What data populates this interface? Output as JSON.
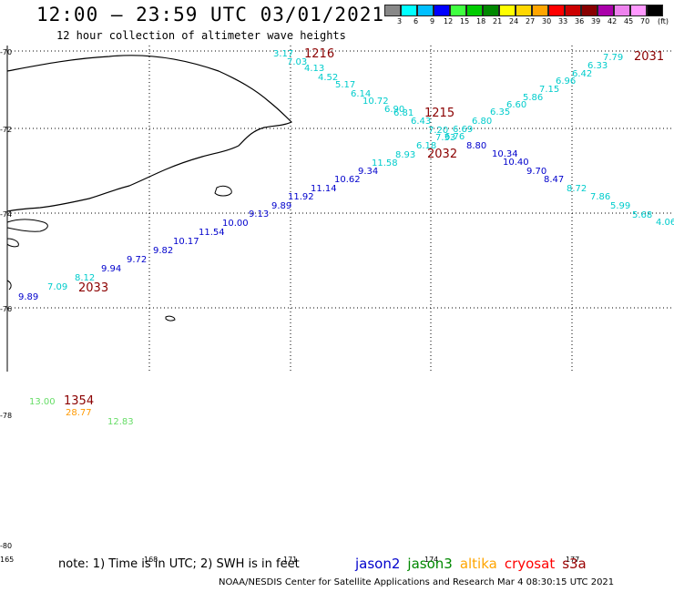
{
  "title": "12:00 – 23:59 UTC 03/01/2021",
  "subtitle": "12 hour collection of altimeter wave heights",
  "legend": {
    "unit": "(ft)",
    "labels": [
      "3",
      "6",
      "9",
      "12",
      "15",
      "18",
      "21",
      "24",
      "27",
      "30",
      "33",
      "36",
      "39",
      "42",
      "45",
      "70"
    ],
    "colors": [
      "#888888",
      "#00ffff",
      "#00bfff",
      "#0000ff",
      "#40ff40",
      "#00cc00",
      "#008800",
      "#ffff00",
      "#ffd700",
      "#ffa500",
      "#ff0000",
      "#cc0000",
      "#880000",
      "#aa00aa",
      "#ee82ee",
      "#ff99ff",
      "#000000"
    ]
  },
  "axes": {
    "lat_labels": [
      "-70",
      "-72",
      "-74",
      "-76",
      "-78",
      "-80"
    ],
    "lon_labels": [
      "165",
      "168",
      "171",
      "174",
      "177"
    ]
  },
  "tracks": [
    {
      "id": "1216",
      "color": "#00cccc",
      "labels": [
        "3.17",
        "7.03",
        "4.13",
        "4.52",
        "5.17",
        "6.14",
        "10.72",
        "6.90",
        "6.81",
        "6.43",
        "7.20",
        "7.33"
      ]
    },
    {
      "id": "1215",
      "color": "#00cccc",
      "labels": [
        "6.76",
        "6.69",
        "6.80",
        "6.35",
        "6.60",
        "5.86",
        "7.15",
        "6.96",
        "6.42",
        "6.33",
        "7.79"
      ]
    },
    {
      "id": "2031",
      "color": "#00cccc",
      "labels": [
        "8.80",
        "10.34",
        "10.40",
        "9.70",
        "8.47",
        "8.72",
        "7.86",
        "5.99",
        "5.68",
        "4.06"
      ]
    },
    {
      "id": "2032",
      "color": "#0000cc",
      "labels": [
        "6.18",
        "8.93",
        "11.58",
        "9.34",
        "10.62",
        "11.14",
        "11.92",
        "9.89",
        "9.13",
        "10.00",
        "11.54",
        "10.17",
        "9.82",
        "9.72",
        "9.94",
        "8.12",
        "7.09",
        "9.89"
      ]
    },
    {
      "id": "2033",
      "color": "#0000cc",
      "labels": []
    },
    {
      "id": "1354",
      "color": "#66dd66",
      "labels": [
        "13.00",
        "28.77",
        "12.83"
      ]
    }
  ],
  "note": "note: 1) Time is in UTC; 2) SWH is in feet",
  "satellites": [
    {
      "name": "jason2",
      "color": "#0000cc"
    },
    {
      "name": "jason3",
      "color": "#008800"
    },
    {
      "name": "altika",
      "color": "#ffa500"
    },
    {
      "name": "cryosat",
      "color": "#ff0000"
    },
    {
      "name": "s3a",
      "color": "#990000"
    }
  ],
  "footer": "NOAA/NESDIS Center for Satellite Applications and Research    Mar  4 08:30:15 UTC 2021"
}
